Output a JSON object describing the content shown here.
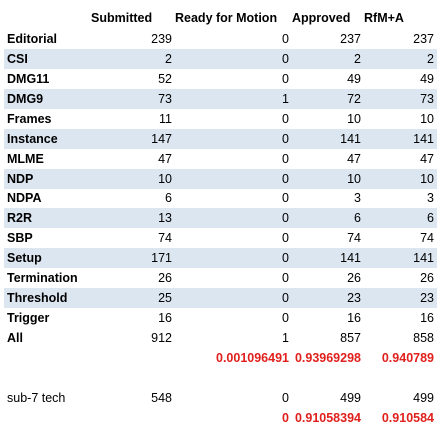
{
  "table": {
    "headers": [
      "Submitted",
      "Ready for Motion",
      "Approved",
      "RfM+A"
    ],
    "rows": [
      {
        "label": "Editorial",
        "cells": [
          239,
          0,
          237,
          237
        ]
      },
      {
        "label": "CSI",
        "cells": [
          2,
          0,
          2,
          2
        ]
      },
      {
        "label": "DMG11",
        "cells": [
          52,
          0,
          49,
          49
        ]
      },
      {
        "label": "DMG9",
        "cells": [
          73,
          1,
          72,
          73
        ]
      },
      {
        "label": "Frames",
        "cells": [
          11,
          0,
          10,
          10
        ]
      },
      {
        "label": "Instance",
        "cells": [
          147,
          0,
          141,
          141
        ]
      },
      {
        "label": "MLME",
        "cells": [
          47,
          0,
          47,
          47
        ]
      },
      {
        "label": "NDP",
        "cells": [
          10,
          0,
          10,
          10
        ]
      },
      {
        "label": "NDPA",
        "cells": [
          6,
          0,
          3,
          3
        ]
      },
      {
        "label": "R2R",
        "cells": [
          13,
          0,
          6,
          6
        ]
      },
      {
        "label": "SBP",
        "cells": [
          74,
          0,
          74,
          74
        ]
      },
      {
        "label": "Setup",
        "cells": [
          171,
          0,
          141,
          141
        ]
      },
      {
        "label": "Termination",
        "cells": [
          26,
          0,
          26,
          26
        ]
      },
      {
        "label": "Threshold",
        "cells": [
          25,
          0,
          23,
          23
        ]
      },
      {
        "label": "Trigger",
        "cells": [
          16,
          0,
          16,
          16
        ]
      },
      {
        "label": "All",
        "cells": [
          912,
          1,
          857,
          858
        ]
      }
    ],
    "total_ratios": [
      0.001096491,
      0.93969298,
      0.940789
    ],
    "sub_row": {
      "label": "sub-7 tech",
      "cells": [
        548,
        0,
        499,
        499
      ]
    },
    "sub_ratios": [
      0,
      0.91058394,
      0.910584
    ]
  }
}
